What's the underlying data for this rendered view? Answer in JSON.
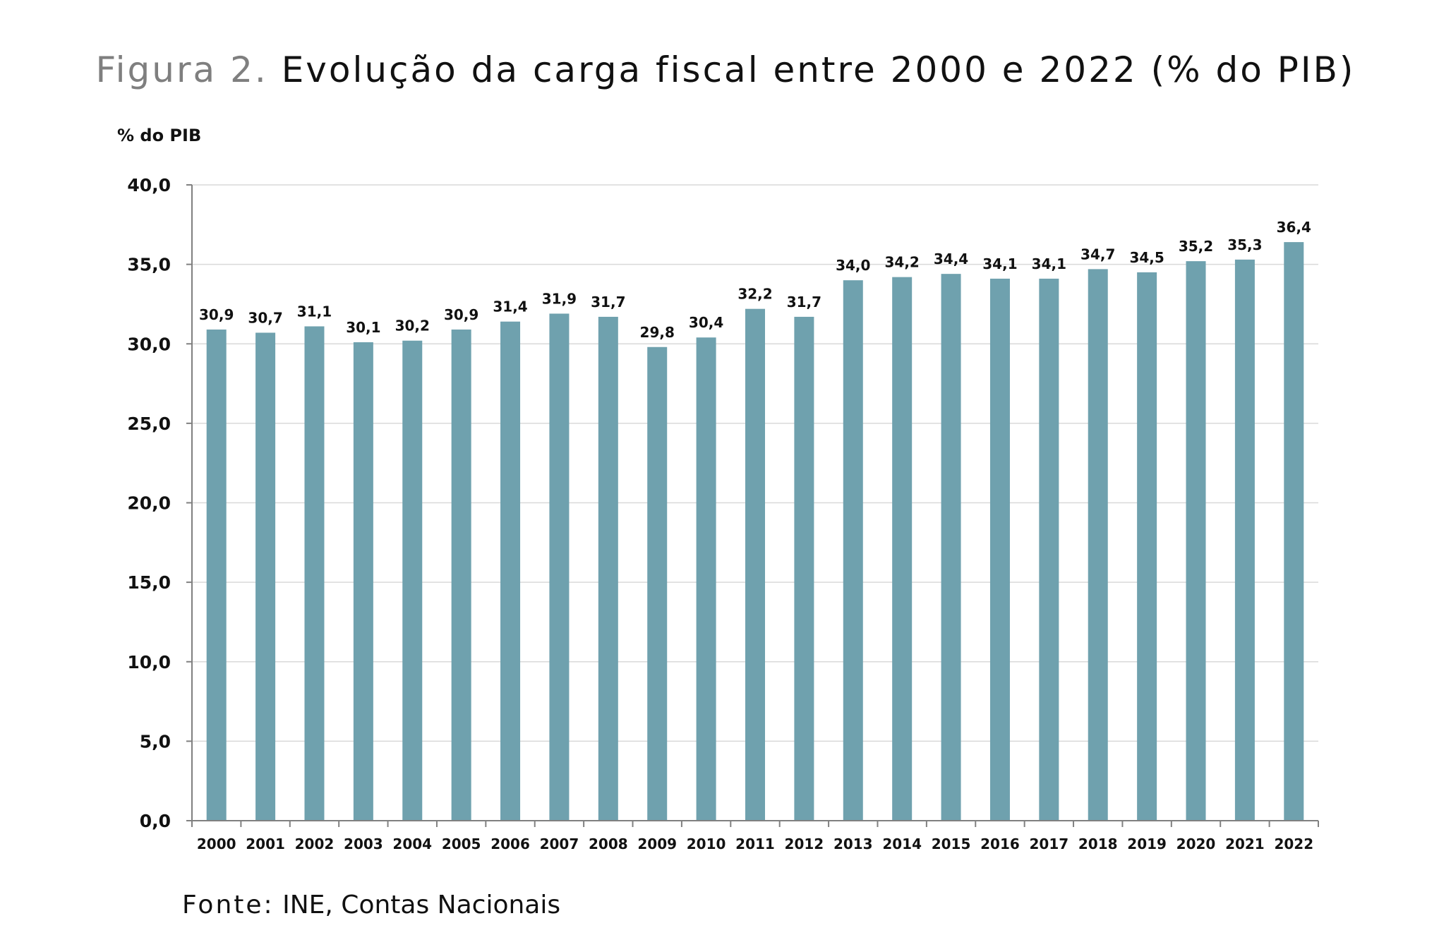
{
  "title": {
    "prefix": "Figura 2.",
    "text": "Evolução da carga fiscal entre 2000 e 2022 (% do PIB)"
  },
  "source": {
    "label": "Fonte:",
    "text": "INE, Contas Nacionais"
  },
  "chart_data": {
    "type": "bar",
    "ylabel": "% do PIB",
    "xlabel": "",
    "ylim": [
      0,
      40
    ],
    "yticks": [
      "0,0",
      "5,0",
      "10,0",
      "15,0",
      "20,0",
      "25,0",
      "30,0",
      "35,0",
      "40,0"
    ],
    "grid": true,
    "bar_color": "#6fa1ae",
    "categories": [
      "2000",
      "2001",
      "2002",
      "2003",
      "2004",
      "2005",
      "2006",
      "2007",
      "2008",
      "2009",
      "2010",
      "2011",
      "2012",
      "2013",
      "2014",
      "2015",
      "2016",
      "2017",
      "2018",
      "2019",
      "2020",
      "2021",
      "2022"
    ],
    "values": [
      30.9,
      30.7,
      31.1,
      30.1,
      30.2,
      30.9,
      31.4,
      31.9,
      31.7,
      29.8,
      30.4,
      32.2,
      31.7,
      34.0,
      34.2,
      34.4,
      34.1,
      34.1,
      34.7,
      34.5,
      35.2,
      35.3,
      36.4
    ],
    "data_labels": [
      "30,9",
      "30,7",
      "31,1",
      "30,1",
      "30,2",
      "30,9",
      "31,4",
      "31,9",
      "31,7",
      "29,8",
      "30,4",
      "32,2",
      "31,7",
      "34,0",
      "34,2",
      "34,4",
      "34,1",
      "34,1",
      "34,7",
      "34,5",
      "35,2",
      "35,3",
      "36,4"
    ]
  }
}
